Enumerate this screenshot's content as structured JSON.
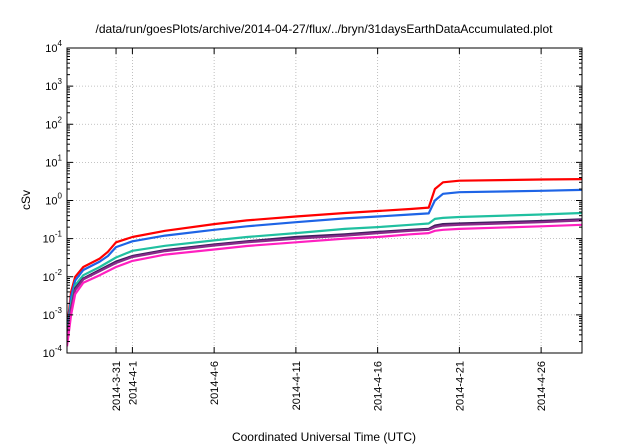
{
  "chart_data": {
    "type": "line",
    "title": "/data/run/goesPlots/archive/2014-04-27/flux/../bryn/31daysEarthDataAccumulated.plot",
    "xlabel": "Coordinated Universal Time (UTC)",
    "ylabel": "cSv",
    "y_scale": "log",
    "ylim": [
      0.0001,
      10000
    ],
    "xlim": [
      "2014-03-28",
      "2014-04-28T12:00"
    ],
    "grid": true,
    "legend": "none",
    "y_ticks": [
      {
        "base": "10",
        "exp": "-4",
        "value": 0.0001
      },
      {
        "base": "10",
        "exp": "-3",
        "value": 0.001
      },
      {
        "base": "10",
        "exp": "-2",
        "value": 0.01
      },
      {
        "base": "10",
        "exp": "-1",
        "value": 0.1
      },
      {
        "base": "10",
        "exp": "0",
        "value": 1
      },
      {
        "base": "10",
        "exp": "1",
        "value": 10
      },
      {
        "base": "10",
        "exp": "2",
        "value": 100
      },
      {
        "base": "10",
        "exp": "3",
        "value": 1000
      },
      {
        "base": "10",
        "exp": "4",
        "value": 10000
      }
    ],
    "x_ticks": [
      {
        "label": "2014-3-31",
        "date": "2014-03-31"
      },
      {
        "label": "2014-4-1",
        "date": "2014-04-01"
      },
      {
        "label": "2014-4-6",
        "date": "2014-04-06"
      },
      {
        "label": "2014-4-11",
        "date": "2014-04-11"
      },
      {
        "label": "2014-4-16",
        "date": "2014-04-16"
      },
      {
        "label": "2014-4-21",
        "date": "2014-04-21"
      },
      {
        "label": "2014-4-26",
        "date": "2014-04-26"
      }
    ],
    "series": [
      {
        "color": "#ff0000",
        "points": [
          [
            "2014-03-28",
            0.0004
          ],
          [
            "2014-03-28T06:00",
            0.004
          ],
          [
            "2014-03-28T12:00",
            0.01
          ],
          [
            "2014-03-29",
            0.018
          ],
          [
            "2014-03-30",
            0.03
          ],
          [
            "2014-03-30T12:00",
            0.045
          ],
          [
            "2014-03-31",
            0.08
          ],
          [
            "2014-04-01",
            0.11
          ],
          [
            "2014-04-03",
            0.16
          ],
          [
            "2014-04-06",
            0.24
          ],
          [
            "2014-04-08",
            0.3
          ],
          [
            "2014-04-11",
            0.38
          ],
          [
            "2014-04-14",
            0.47
          ],
          [
            "2014-04-16",
            0.53
          ],
          [
            "2014-04-18",
            0.6
          ],
          [
            "2014-04-19T03:00",
            0.65
          ],
          [
            "2014-04-19T12:00",
            2.0
          ],
          [
            "2014-04-20",
            3.0
          ],
          [
            "2014-04-21",
            3.3
          ],
          [
            "2014-04-26",
            3.55
          ],
          [
            "2014-04-28T12:00",
            3.65
          ]
        ]
      },
      {
        "color": "#1e64e6",
        "points": [
          [
            "2014-03-28",
            0.0003
          ],
          [
            "2014-03-28T06:00",
            0.003
          ],
          [
            "2014-03-28T12:00",
            0.008
          ],
          [
            "2014-03-29",
            0.015
          ],
          [
            "2014-03-30",
            0.025
          ],
          [
            "2014-03-30T12:00",
            0.035
          ],
          [
            "2014-03-31",
            0.06
          ],
          [
            "2014-04-01",
            0.085
          ],
          [
            "2014-04-03",
            0.12
          ],
          [
            "2014-04-06",
            0.17
          ],
          [
            "2014-04-08",
            0.21
          ],
          [
            "2014-04-11",
            0.27
          ],
          [
            "2014-04-14",
            0.34
          ],
          [
            "2014-04-16",
            0.38
          ],
          [
            "2014-04-18",
            0.43
          ],
          [
            "2014-04-19T03:00",
            0.46
          ],
          [
            "2014-04-19T12:00",
            1.0
          ],
          [
            "2014-04-20",
            1.5
          ],
          [
            "2014-04-21",
            1.65
          ],
          [
            "2014-04-26",
            1.8
          ],
          [
            "2014-04-28T12:00",
            1.9
          ]
        ]
      },
      {
        "color": "#20c0a0",
        "points": [
          [
            "2014-03-28",
            0.00025
          ],
          [
            "2014-03-28T06:00",
            0.002
          ],
          [
            "2014-03-28T12:00",
            0.006
          ],
          [
            "2014-03-29",
            0.011
          ],
          [
            "2014-03-30",
            0.018
          ],
          [
            "2014-03-31",
            0.032
          ],
          [
            "2014-04-01",
            0.048
          ],
          [
            "2014-04-03",
            0.065
          ],
          [
            "2014-04-06",
            0.09
          ],
          [
            "2014-04-08",
            0.11
          ],
          [
            "2014-04-11",
            0.14
          ],
          [
            "2014-04-14",
            0.18
          ],
          [
            "2014-04-16",
            0.2
          ],
          [
            "2014-04-18",
            0.23
          ],
          [
            "2014-04-19T03:00",
            0.25
          ],
          [
            "2014-04-19T12:00",
            0.33
          ],
          [
            "2014-04-20",
            0.35
          ],
          [
            "2014-04-21",
            0.37
          ],
          [
            "2014-04-26",
            0.43
          ],
          [
            "2014-04-28T12:00",
            0.47
          ]
        ]
      },
      {
        "color": "#3f1f5f",
        "points": [
          [
            "2014-03-28",
            0.0002
          ],
          [
            "2014-03-28T06:00",
            0.0015
          ],
          [
            "2014-03-28T12:00",
            0.005
          ],
          [
            "2014-03-29",
            0.009
          ],
          [
            "2014-03-30",
            0.015
          ],
          [
            "2014-03-31",
            0.025
          ],
          [
            "2014-04-01",
            0.035
          ],
          [
            "2014-04-03",
            0.05
          ],
          [
            "2014-04-06",
            0.07
          ],
          [
            "2014-04-08",
            0.085
          ],
          [
            "2014-04-11",
            0.11
          ],
          [
            "2014-04-14",
            0.13
          ],
          [
            "2014-04-16",
            0.15
          ],
          [
            "2014-04-18",
            0.17
          ],
          [
            "2014-04-19T03:00",
            0.18
          ],
          [
            "2014-04-19T12:00",
            0.22
          ],
          [
            "2014-04-20",
            0.24
          ],
          [
            "2014-04-21",
            0.25
          ],
          [
            "2014-04-26",
            0.29
          ],
          [
            "2014-04-28T12:00",
            0.32
          ]
        ]
      },
      {
        "color": "#8a2a8a",
        "points": [
          [
            "2014-03-28",
            0.0002
          ],
          [
            "2014-03-28T06:00",
            0.0014
          ],
          [
            "2014-03-28T12:00",
            0.0045
          ],
          [
            "2014-03-29",
            0.0085
          ],
          [
            "2014-03-30",
            0.014
          ],
          [
            "2014-03-31",
            0.023
          ],
          [
            "2014-04-01",
            0.033
          ],
          [
            "2014-04-03",
            0.047
          ],
          [
            "2014-04-06",
            0.066
          ],
          [
            "2014-04-08",
            0.08
          ],
          [
            "2014-04-11",
            0.1
          ],
          [
            "2014-04-14",
            0.12
          ],
          [
            "2014-04-16",
            0.14
          ],
          [
            "2014-04-18",
            0.16
          ],
          [
            "2014-04-19T03:00",
            0.17
          ],
          [
            "2014-04-19T12:00",
            0.2
          ],
          [
            "2014-04-20",
            0.22
          ],
          [
            "2014-04-21",
            0.23
          ],
          [
            "2014-04-26",
            0.27
          ],
          [
            "2014-04-28T12:00",
            0.3
          ]
        ]
      },
      {
        "color": "#ff20c0",
        "points": [
          [
            "2014-03-28",
            0.00015
          ],
          [
            "2014-03-28T06:00",
            0.001
          ],
          [
            "2014-03-28T12:00",
            0.0035
          ],
          [
            "2014-03-29",
            0.007
          ],
          [
            "2014-03-30",
            0.011
          ],
          [
            "2014-03-31",
            0.018
          ],
          [
            "2014-04-01",
            0.026
          ],
          [
            "2014-04-03",
            0.038
          ],
          [
            "2014-04-06",
            0.052
          ],
          [
            "2014-04-08",
            0.064
          ],
          [
            "2014-04-11",
            0.08
          ],
          [
            "2014-04-14",
            0.1
          ],
          [
            "2014-04-16",
            0.11
          ],
          [
            "2014-04-18",
            0.13
          ],
          [
            "2014-04-19T03:00",
            0.14
          ],
          [
            "2014-04-19T12:00",
            0.16
          ],
          [
            "2014-04-20",
            0.17
          ],
          [
            "2014-04-21",
            0.18
          ],
          [
            "2014-04-26",
            0.21
          ],
          [
            "2014-04-28T12:00",
            0.23
          ]
        ]
      }
    ]
  }
}
